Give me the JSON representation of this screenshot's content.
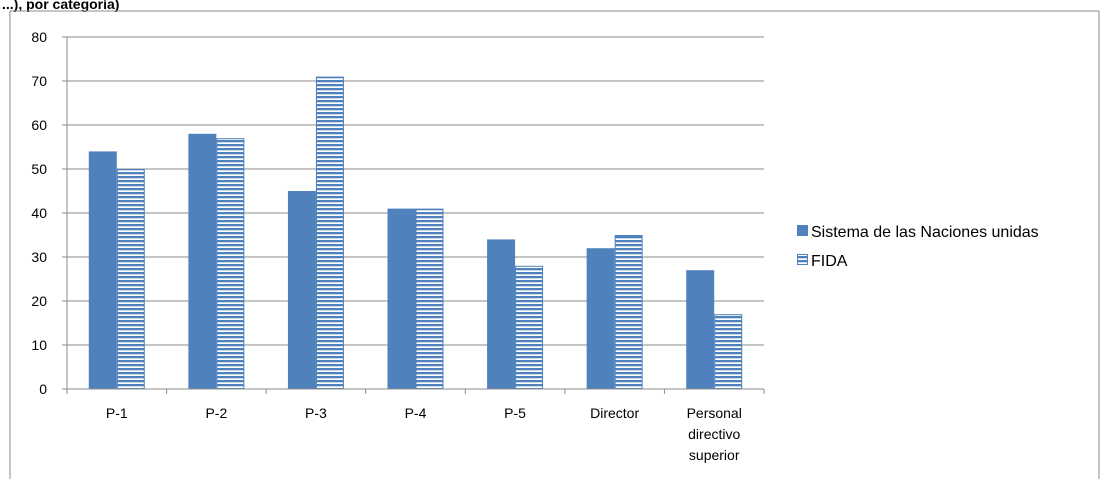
{
  "header_fragment": "...), por categoría)",
  "chart_data": {
    "type": "bar",
    "categories": [
      "P-1",
      "P-2",
      "P-3",
      "P-4",
      "P-5",
      "Director",
      "Personal directivo superior"
    ],
    "category_label_lines": [
      [
        "P-1"
      ],
      [
        "P-2"
      ],
      [
        "P-3"
      ],
      [
        "P-4"
      ],
      [
        "P-5"
      ],
      [
        "Director"
      ],
      [
        "Personal",
        "directivo",
        "superior"
      ]
    ],
    "series": [
      {
        "name": "Sistema de las Naciones unidas",
        "values": [
          54,
          58,
          45,
          41,
          34,
          32,
          27
        ],
        "color": "#4F81BD",
        "pattern": "solid"
      },
      {
        "name": "FIDA",
        "values": [
          50,
          57,
          71,
          41,
          28,
          35,
          17
        ],
        "color": "#4F81BD",
        "pattern": "horizontal-stripes"
      }
    ],
    "ylim": [
      0,
      80
    ],
    "yticks": [
      0,
      10,
      20,
      30,
      40,
      50,
      60,
      70,
      80
    ],
    "grid": true,
    "legend_position": "right",
    "title": "",
    "xlabel": "",
    "ylabel": ""
  }
}
